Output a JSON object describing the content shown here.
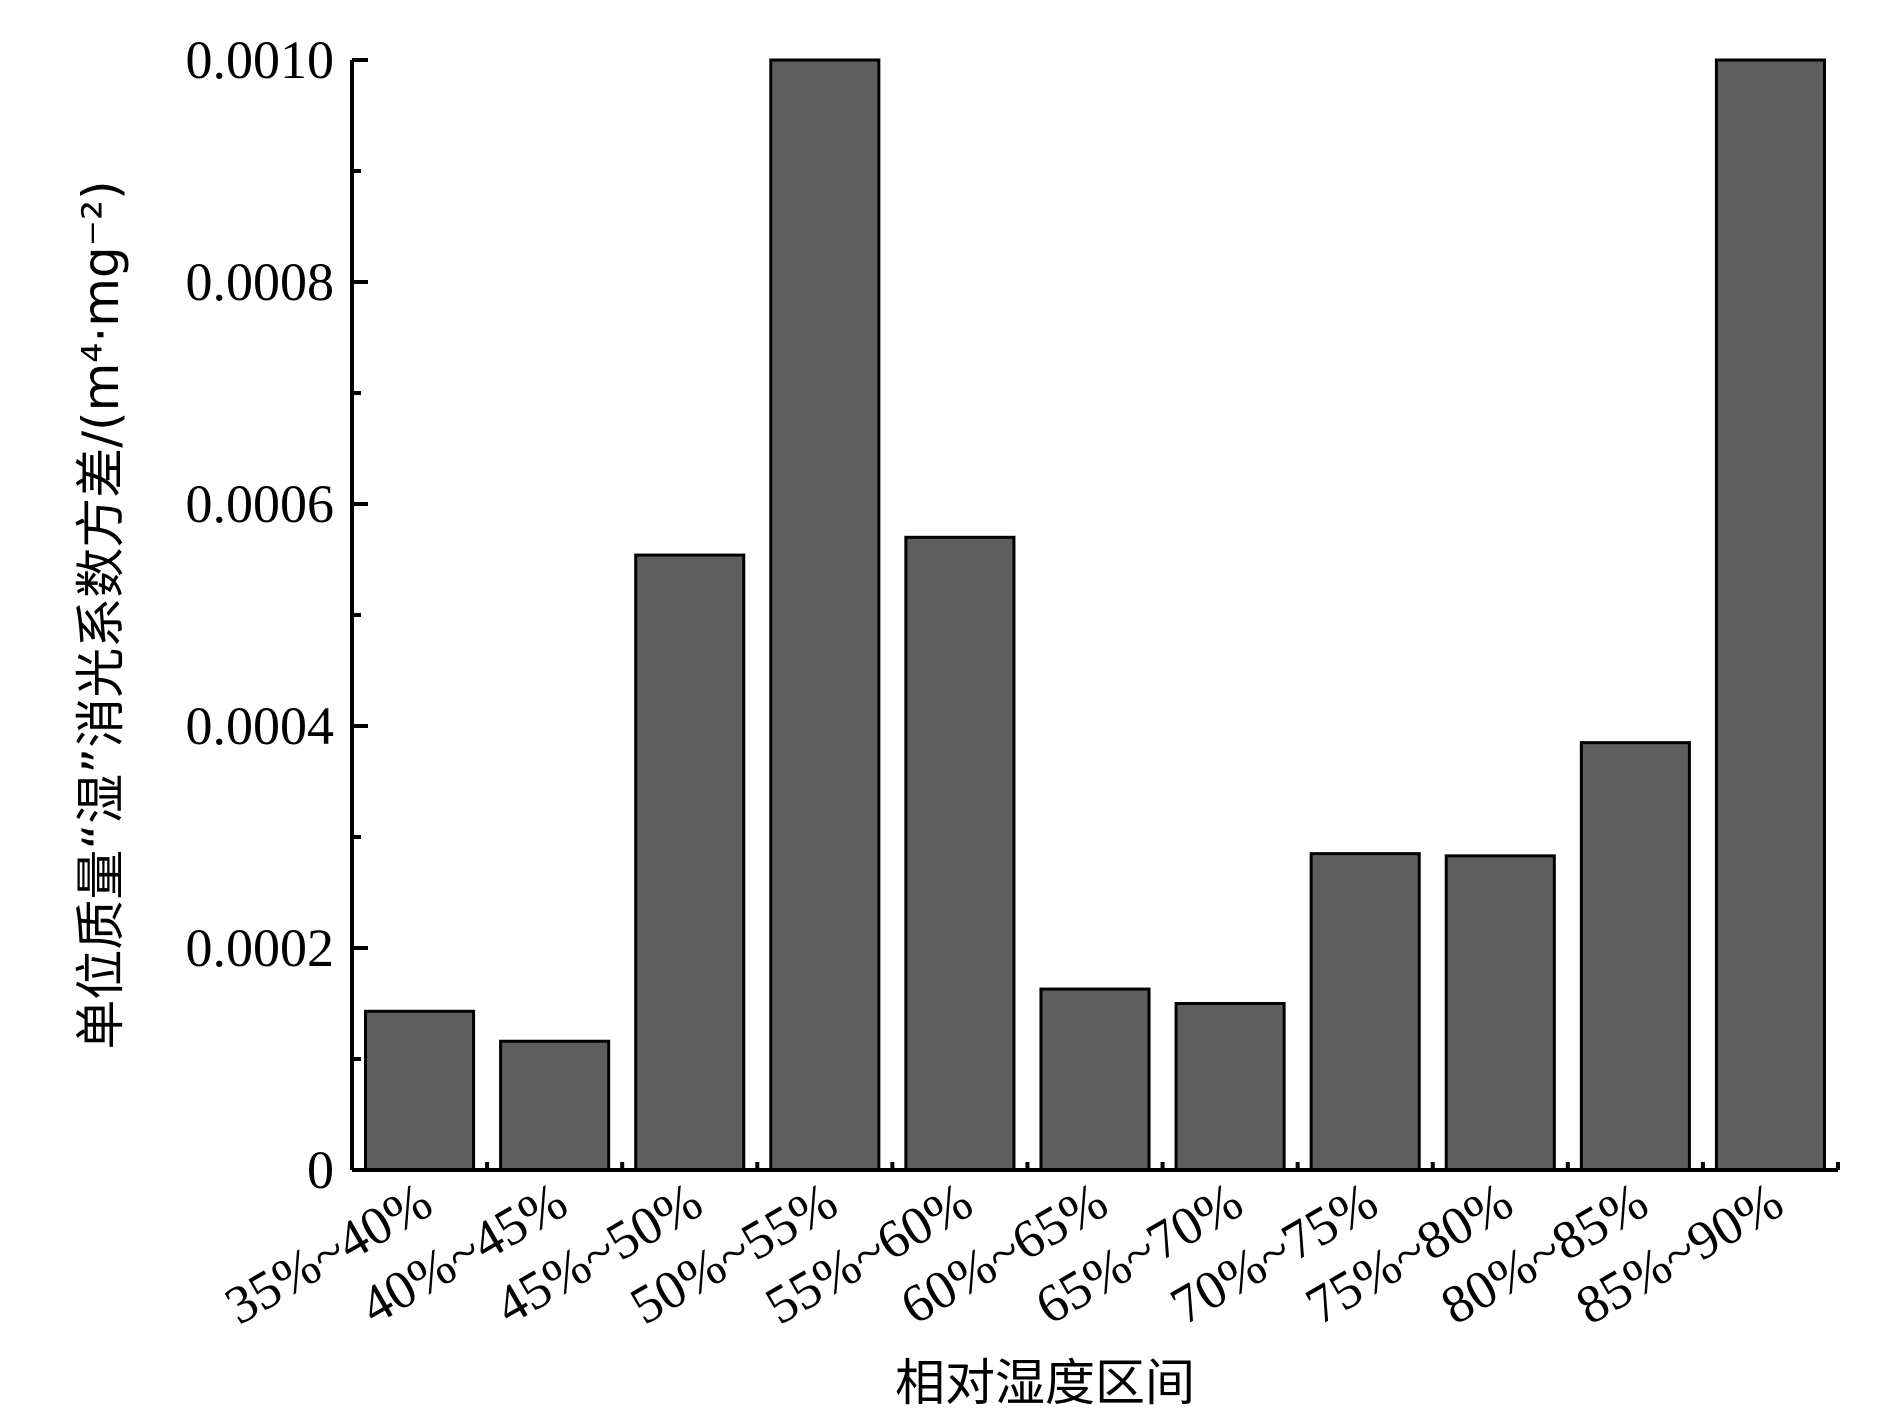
{
  "chart_data": {
    "type": "bar",
    "categories": [
      "35%~40%",
      "40%~45%",
      "45%~50%",
      "50%~55%",
      "55%~60%",
      "60%~65%",
      "65%~70%",
      "70%~75%",
      "75%~80%",
      "80%~85%",
      "85%~90%"
    ],
    "values": [
      0.000143,
      0.000116,
      0.000554,
      0.001,
      0.00057,
      0.000163,
      0.00015,
      0.000285,
      0.000283,
      0.000385,
      0.001
    ],
    "xlabel": "相对湿度区间",
    "ylabel": "单位质量“湿”消光系数方差/(m⁴·mg⁻²)",
    "ylim": [
      0,
      0.001
    ],
    "yticks": [
      0,
      0.0002,
      0.0004,
      0.0006,
      0.0008,
      0.001
    ],
    "ytick_labels": [
      "0",
      "0.0002",
      "0.0004",
      "0.0006",
      "0.0008",
      "0.0010"
    ],
    "bar_color": "#5e5e5e",
    "grid": false
  }
}
